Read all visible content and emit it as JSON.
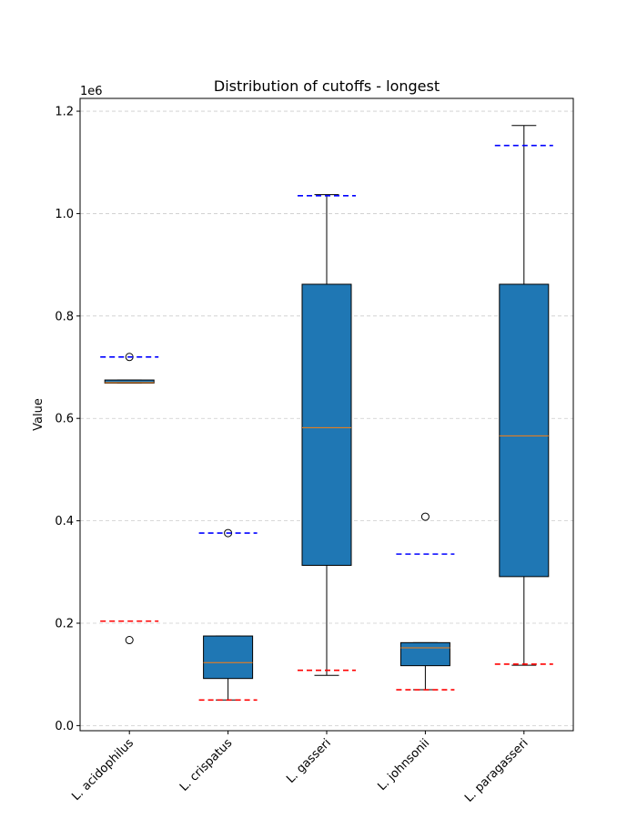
{
  "chart_data": {
    "type": "box",
    "title": "Distribution of cutoffs - longest",
    "ylabel": "Value",
    "xlabel": "",
    "y_offset_label": "1e6",
    "ylim": [
      -0.01,
      1.225
    ],
    "yticks": [
      0.0,
      0.2,
      0.4,
      0.6,
      0.8,
      1.0,
      1.2
    ],
    "ytick_labels": [
      "0.0",
      "0.2",
      "0.4",
      "0.6",
      "0.8",
      "1.0",
      "1.2"
    ],
    "grid": "horizontal dashed",
    "categories": [
      "L. acidophilus",
      "L. crispatus",
      "L. gasseri",
      "L. johnsonii",
      "L. paragasseri"
    ],
    "boxes": [
      {
        "whisker_low": 0.669,
        "q1": 0.669,
        "median": 0.67,
        "q3": 0.675,
        "whisker_high": 0.675,
        "outliers": [
          0.72,
          0.167
        ]
      },
      {
        "whisker_low": 0.05,
        "q1": 0.092,
        "median": 0.123,
        "q3": 0.175,
        "whisker_high": 0.175,
        "outliers": [
          0.376
        ]
      },
      {
        "whisker_low": 0.098,
        "q1": 0.313,
        "median": 0.582,
        "q3": 0.862,
        "whisker_high": 1.037,
        "outliers": []
      },
      {
        "whisker_low": 0.07,
        "q1": 0.117,
        "median": 0.152,
        "q3": 0.162,
        "whisker_high": 0.162,
        "outliers": [
          0.408
        ]
      },
      {
        "whisker_low": 0.118,
        "q1": 0.291,
        "median": 0.566,
        "q3": 0.862,
        "whisker_high": 1.172,
        "outliers": []
      }
    ],
    "upper_cutoffs": [
      0.72,
      0.376,
      1.035,
      0.335,
      1.133
    ],
    "lower_cutoffs": [
      0.204,
      0.05,
      0.108,
      0.07,
      0.12
    ],
    "colors": {
      "box_fill": "#1f77b4",
      "median": "#ff7f0e",
      "upper_cutoff": "#0000ff",
      "lower_cutoff": "#ff0000",
      "grid": "#cccccc"
    }
  }
}
